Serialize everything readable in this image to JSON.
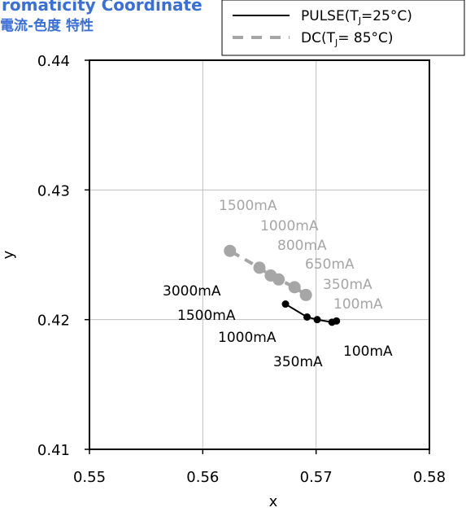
{
  "header": {
    "title": "romaticity Coordinate",
    "subtitle": "電流-色度 特性"
  },
  "colors": {
    "title": "#3a6fd8",
    "pulse": "#000000",
    "dc": "#a6a6a6",
    "grid": "#bfbfbf",
    "frame": "#000000"
  },
  "chart_data": {
    "type": "line",
    "title": "",
    "xlabel": "x",
    "ylabel": "y",
    "xlim": [
      0.55,
      0.58
    ],
    "ylim": [
      0.41,
      0.44
    ],
    "x_ticks": [
      0.55,
      0.56,
      0.57,
      0.58
    ],
    "y_ticks": [
      0.41,
      0.42,
      0.43,
      0.44
    ],
    "x_tick_labels": [
      "0.55",
      "0.56",
      "0.57",
      "0.58"
    ],
    "y_tick_labels": [
      "0.41",
      "0.42",
      "0.43",
      "0.44"
    ],
    "grid": true,
    "legend_position": "top-right",
    "series": [
      {
        "name": "PULSE(Tⱼ=25°C)",
        "name_main": "PULSE(T",
        "name_sub": "J",
        "name_rest": "=25°C)",
        "color": "#000000",
        "line_style": "solid",
        "x": [
          0.5718,
          0.5714,
          0.5701,
          0.5692,
          0.5673
        ],
        "y": [
          0.4199,
          0.4198,
          0.42,
          0.4202,
          0.4212
        ]
      },
      {
        "name": "DC(Tⱼ= 85°C)",
        "name_main": "DC(T",
        "name_sub": "J",
        "name_rest": "= 85°C)",
        "color": "#a6a6a6",
        "line_style": "dashed",
        "x": [
          0.5691,
          0.5681,
          0.5667,
          0.566,
          0.565,
          0.5624
        ],
        "y": [
          0.4219,
          0.4225,
          0.4231,
          0.4234,
          0.424,
          0.4253
        ]
      }
    ],
    "annotations": [
      {
        "text": "100mA",
        "series": 0
      },
      {
        "text": "350mA",
        "series": 0
      },
      {
        "text": "1000mA",
        "series": 0
      },
      {
        "text": "1500mA",
        "series": 0
      },
      {
        "text": "3000mA",
        "series": 0
      },
      {
        "text": "100mA",
        "series": 1
      },
      {
        "text": "350mA",
        "series": 1
      },
      {
        "text": "650mA",
        "series": 1
      },
      {
        "text": "800mA",
        "series": 1
      },
      {
        "text": "1000mA",
        "series": 1
      },
      {
        "text": "1500mA",
        "series": 1
      }
    ]
  }
}
